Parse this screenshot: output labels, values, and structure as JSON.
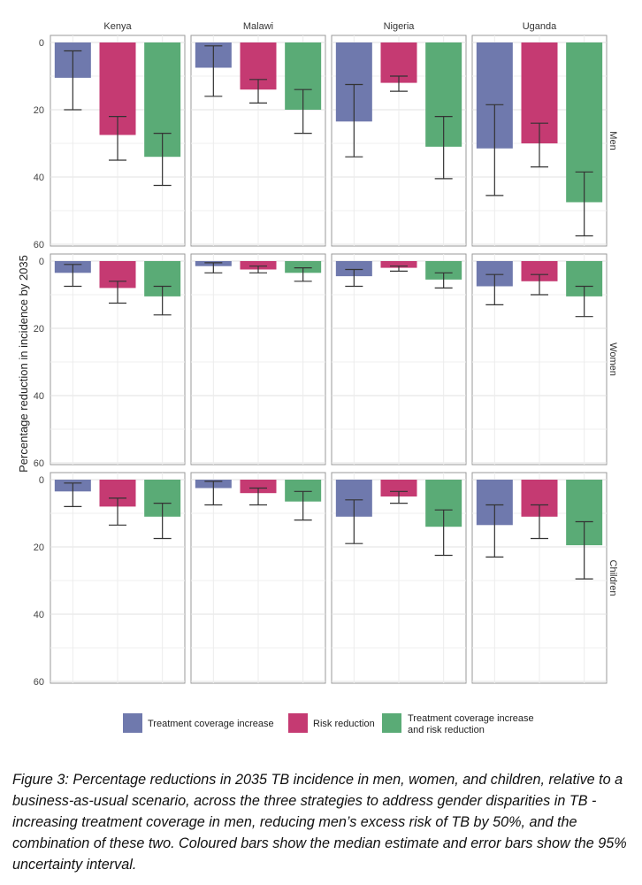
{
  "chart_data": {
    "type": "bar",
    "ylabel": "Percentage reduction in incidence by 2035",
    "ylim": [
      0,
      60
    ],
    "yticks": [
      0,
      20,
      40,
      60
    ],
    "y_reversed": true,
    "grid": true,
    "legend_position": "bottom",
    "columns": [
      "Kenya",
      "Malawi",
      "Nigeria",
      "Uganda"
    ],
    "rows": [
      "Men",
      "Women",
      "Children"
    ],
    "series": [
      {
        "name": "Treatment coverage increase",
        "color": "#6f79ad"
      },
      {
        "name": "Risk reduction",
        "color": "#c53a72"
      },
      {
        "name": "Treatment coverage increase and risk reduction",
        "color": "#5aab76"
      }
    ],
    "legend_labels": [
      "Treatment coverage increase",
      "Risk reduction",
      "Treatment coverage increase",
      "and risk reduction"
    ],
    "panels": {
      "Men": {
        "Kenya": {
          "values": [
            10.5,
            27.5,
            34
          ],
          "lower": [
            2.5,
            22,
            27
          ],
          "upper": [
            20,
            35,
            42.5
          ]
        },
        "Malawi": {
          "values": [
            7.5,
            14,
            20
          ],
          "lower": [
            1,
            11,
            14
          ],
          "upper": [
            16,
            18,
            27
          ]
        },
        "Nigeria": {
          "values": [
            23.5,
            12,
            31
          ],
          "lower": [
            12.5,
            10,
            22
          ],
          "upper": [
            34,
            14.5,
            40.5
          ]
        },
        "Uganda": {
          "values": [
            31.5,
            30,
            47.5
          ],
          "lower": [
            18.5,
            24,
            38.5
          ],
          "upper": [
            45.5,
            37,
            57.5
          ]
        }
      },
      "Women": {
        "Kenya": {
          "values": [
            3.5,
            8,
            10.5
          ],
          "lower": [
            1,
            6,
            7.5
          ],
          "upper": [
            7.5,
            12.5,
            16
          ]
        },
        "Malawi": {
          "values": [
            1.5,
            2.5,
            3.5
          ],
          "lower": [
            0.5,
            1.5,
            2
          ],
          "upper": [
            3.5,
            3.5,
            6
          ]
        },
        "Nigeria": {
          "values": [
            4.5,
            2,
            5.5
          ],
          "lower": [
            2.5,
            1.5,
            3.5
          ],
          "upper": [
            7.5,
            3,
            8
          ]
        },
        "Uganda": {
          "values": [
            7.5,
            6,
            10.5
          ],
          "lower": [
            4,
            4,
            7.5
          ],
          "upper": [
            13,
            10,
            16.5
          ]
        }
      },
      "Children": {
        "Kenya": {
          "values": [
            3.5,
            8,
            11
          ],
          "lower": [
            1,
            5.5,
            7
          ],
          "upper": [
            8,
            13.5,
            17.5
          ]
        },
        "Malawi": {
          "values": [
            2.5,
            4,
            6.5
          ],
          "lower": [
            0.5,
            2.5,
            3.5
          ],
          "upper": [
            7.5,
            7.5,
            12
          ]
        },
        "Nigeria": {
          "values": [
            11,
            5,
            14
          ],
          "lower": [
            6,
            3.5,
            9
          ],
          "upper": [
            19,
            7,
            22.5
          ]
        },
        "Uganda": {
          "values": [
            13.5,
            11,
            19.5
          ],
          "lower": [
            7.5,
            7.5,
            12.5
          ],
          "upper": [
            23,
            17.5,
            29.5
          ]
        }
      }
    }
  },
  "caption": "Figure 3: Percentage reductions in 2035 TB incidence in men, women, and children, relative to a business-as-usual scenario, across the three strategies to address gender disparities in TB - increasing treatment coverage in men, reducing men’s excess risk of TB by 50%, and the combination of these two. Coloured bars show the median estimate and error bars show the 95% uncertainty interval."
}
